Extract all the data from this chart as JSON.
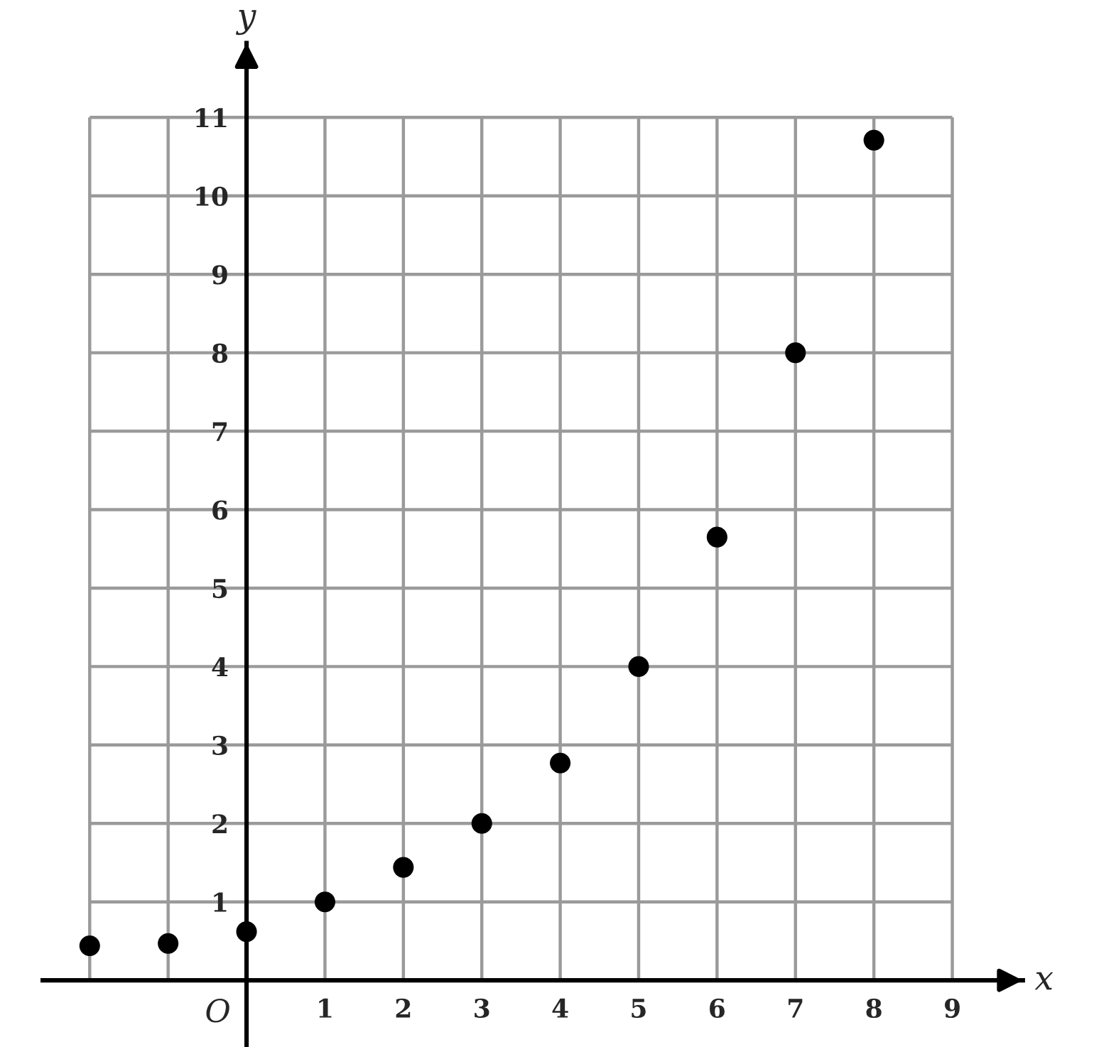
{
  "chart_data": {
    "type": "scatter",
    "xlabel": "x",
    "ylabel": "y",
    "x": [
      -2,
      -1,
      0,
      1,
      2,
      3,
      4,
      5,
      6,
      7,
      8
    ],
    "values": [
      0.44,
      0.47,
      0.62,
      1,
      1.44,
      2,
      2.77,
      4,
      5.65,
      8,
      10.71
    ],
    "color": "#000000",
    "marker": "circle",
    "xlim": [
      -2.6,
      9.9
    ],
    "ylim": [
      -0.85,
      11.95
    ],
    "xticks": [
      {
        "value": -2,
        "label": null
      },
      {
        "value": -1,
        "label": null
      },
      1,
      2,
      3,
      4,
      5,
      6,
      7,
      8,
      9
    ],
    "yticks": [
      1,
      2,
      3,
      4,
      5,
      6,
      7,
      8,
      9,
      10,
      11
    ],
    "grid": true,
    "annotations": [
      "O"
    ]
  }
}
